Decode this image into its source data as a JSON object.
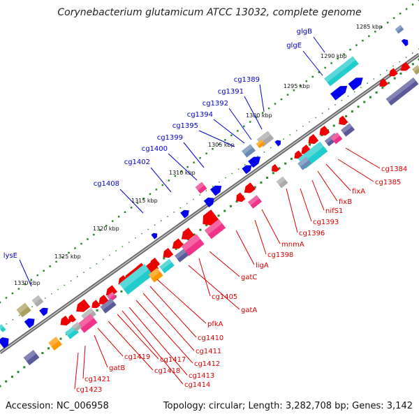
{
  "title": "Corynebacterium glutamicum ATCC 13032, complete genome",
  "footer": {
    "accession": "Accession: NC_006958",
    "topology": "Topology: circular; Length: 3,282,708 bp; Genes: 3,142"
  },
  "colors": {
    "backbone": "#808080",
    "dots": "#2a8a2a",
    "label_forward": "#0000cc",
    "label_reverse": "#dd0000",
    "forward_gene": "#0000ee",
    "reverse_gene": "#ee0000",
    "cyan_gene": "#22cccc",
    "slate_gene": "#5a5a9a",
    "pink_gene": "#ee3388",
    "gray_gene": "#aaaaaa",
    "orange_gene": "#ff9900",
    "olive_gene": "#aaa060",
    "steel_gene": "#6a8ab4"
  },
  "kbp_labels": [
    "1285 kbp",
    "1290 kbp",
    "1295 kbp",
    "1300 kbp",
    "1305 kbp",
    "1310 kbp",
    "1315 kbp",
    "1320 kbp",
    "1325 kbp",
    "1330 kbp"
  ],
  "forward_labels": [
    "glgB",
    "glgE",
    "cg1389",
    "cg1391",
    "cg1392",
    "cg1394",
    "cg1395",
    "cg1399",
    "cg1400",
    "cg1402",
    "cg1408",
    "lysE"
  ],
  "reverse_labels": [
    "cg1384",
    "cg1385",
    "fixA",
    "fixB",
    "nifS1",
    "cg1393",
    "cg1396",
    "mnmA",
    "cg1398",
    "ligA",
    "gatC",
    "cg1405",
    "gatA",
    "pfkA",
    "cg1410",
    "cg1411",
    "cg1412",
    "cg1413",
    "cg1414",
    "cg1417",
    "cg1418",
    "cg1419",
    "gatB",
    "cg1421",
    "cg1423"
  ]
}
